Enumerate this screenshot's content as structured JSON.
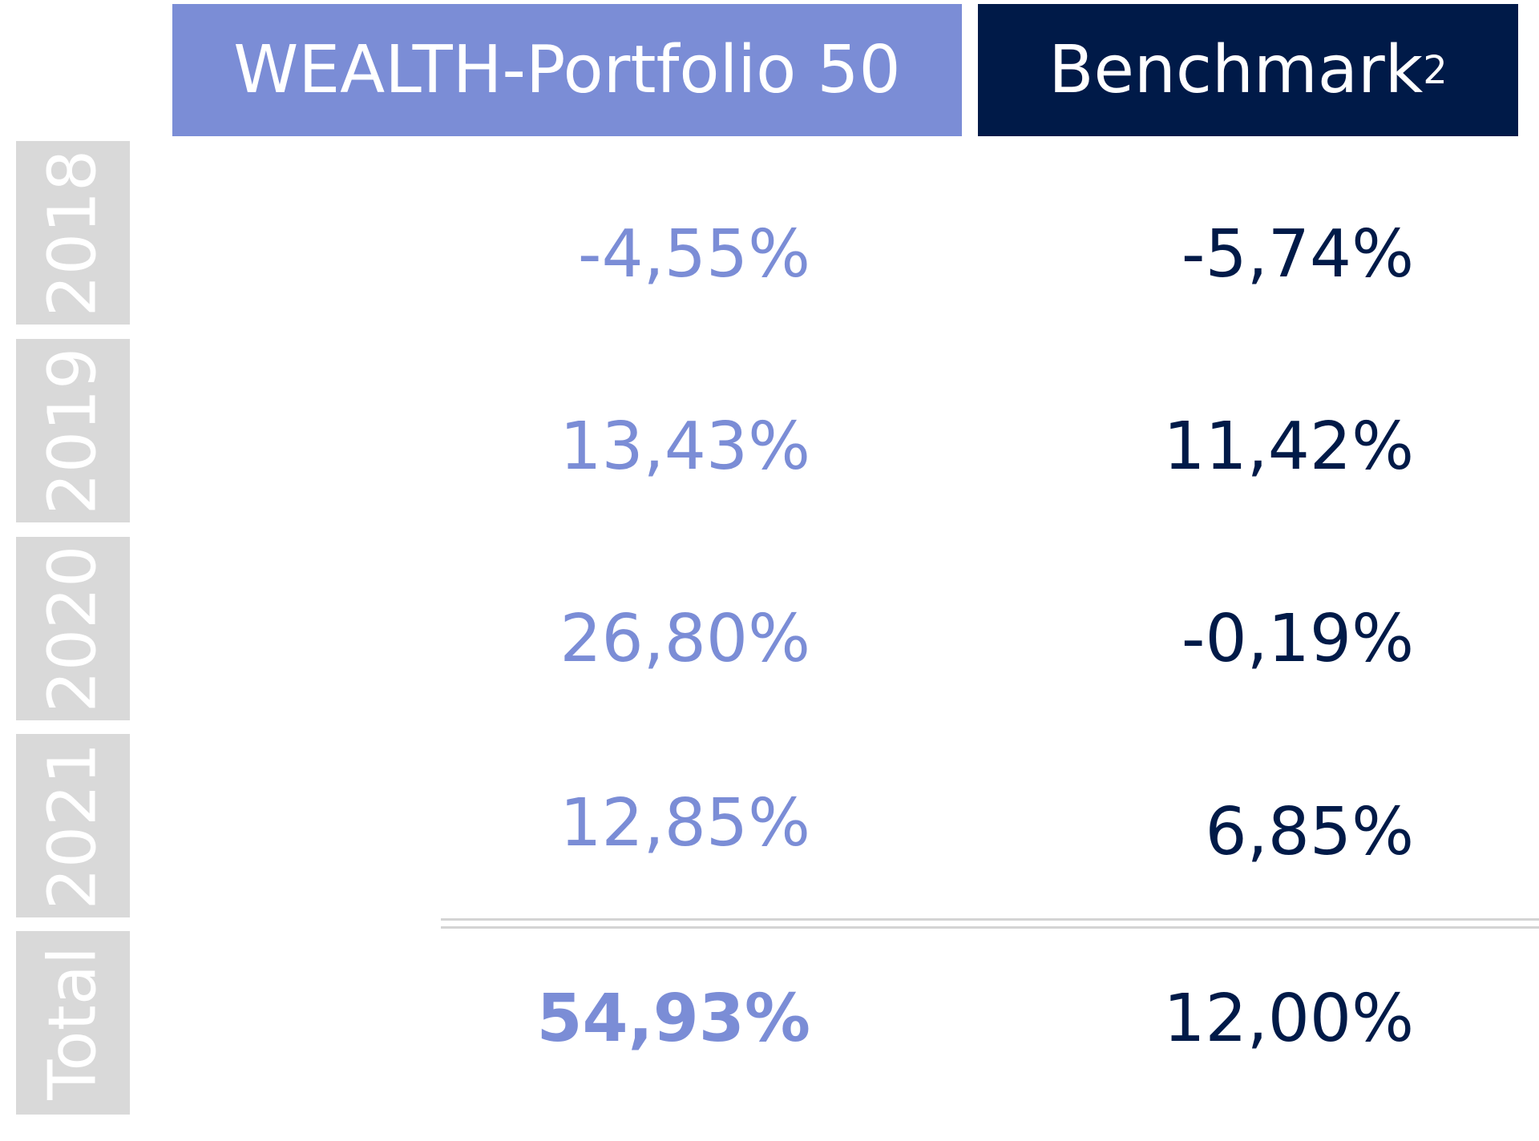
{
  "colors": {
    "portfolio": "#7b8dd6",
    "benchmark": "#001a48",
    "year_box": "#d9d9d9",
    "separator": "#d4d4d4"
  },
  "chart_data": {
    "type": "table",
    "columns": [
      {
        "name": "WEALTH-Portfolio 50",
        "superscript": ""
      },
      {
        "name": "Benchmark",
        "superscript": "2"
      }
    ],
    "rows": [
      {
        "label": "2018",
        "values": [
          "-4,55%",
          "-5,74%"
        ]
      },
      {
        "label": "2019",
        "values": [
          "13,43%",
          "11,42%"
        ]
      },
      {
        "label": "2020",
        "values": [
          "26,80%",
          "-0,19%"
        ]
      },
      {
        "label": "2021",
        "values": [
          "12,85%",
          "6,85%"
        ]
      },
      {
        "label": "Total",
        "values": [
          "54,93%",
          "12,00%"
        ]
      }
    ],
    "numeric": {
      "WEALTH-Portfolio 50": {
        "2018": -4.55,
        "2019": 13.43,
        "2020": 26.8,
        "2021": 12.85,
        "Total": 54.93
      },
      "Benchmark": {
        "2018": -5.74,
        "2019": 11.42,
        "2020": -0.19,
        "2021": 6.85,
        "Total": 12.0
      }
    }
  }
}
